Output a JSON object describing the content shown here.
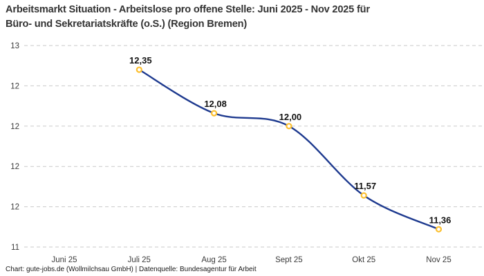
{
  "header": {
    "title_lines": [
      "Arbeitsmarkt Situation - Arbeitslose pro offene Stelle: Juni 2025 - Nov 2025 für",
      "Büro- und Sekretariatskräfte (o.S.) (Region Bremen)"
    ]
  },
  "footer": {
    "credit": "Chart: gute-jobs.de (Wollmilchsau GmbH) | Datenquelle: Bundesagentur für Arbeit"
  },
  "chart_data": {
    "type": "line",
    "title": "Arbeitsmarkt Situation - Arbeitslose pro offene Stelle: Juni 2025 - Nov 2025 für Büro- und Sekretariatskräfte (o.S.) (Region Bremen)",
    "categories": [
      "Juni 25",
      "Juli 25",
      "Aug 25",
      "Sept 25",
      "Okt 25",
      "Nov 25"
    ],
    "series": [
      {
        "name": "Arbeitslose pro offene Stelle",
        "values": [
          null,
          12.35,
          12.08,
          12.0,
          11.57,
          11.36
        ],
        "labels": [
          null,
          "12,35",
          "12,08",
          "12,00",
          "11,57",
          "11,36"
        ]
      }
    ],
    "y_axis": {
      "min": 11.25,
      "max": 12.5,
      "tick_step": 0.25,
      "tick_values": [
        12.5,
        12.25,
        12.0,
        11.75,
        11.5,
        11.25
      ],
      "tick_labels": [
        "13",
        "12",
        "12",
        "12",
        "12",
        "11"
      ]
    },
    "x_axis": {
      "tick_labels": [
        "Juni 25",
        "Juli 25",
        "Aug 25",
        "Sept 25",
        "Okt 25",
        "Nov 25"
      ]
    },
    "grid": "horizontal-dashed",
    "legend": "none",
    "curve": "smooth",
    "colors": {
      "line": "#1e3a8f",
      "marker_ring": "#fcbf2d",
      "marker_fill": "#ffffff",
      "grid": "#c9c9c9",
      "title": "#333333",
      "tick_text": "#3a3a3a",
      "data_label": "#111111",
      "background": "#ffffff"
    }
  }
}
